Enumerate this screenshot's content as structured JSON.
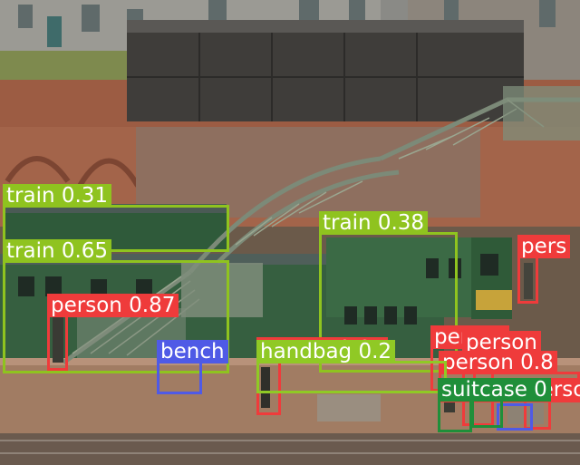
{
  "colors": {
    "train": "#8fc31f",
    "person": "#ef3b3b",
    "bench": "#4f5ae6",
    "handbag": "#90c925",
    "suitcase": "#1f8f3a"
  },
  "detections": [
    {
      "name": "det-train-1",
      "cls": "train",
      "label": "train 0.31"
    },
    {
      "name": "det-train-2",
      "cls": "train",
      "label": "train 0.65"
    },
    {
      "name": "det-train-3",
      "cls": "train",
      "label": "train 0.38"
    },
    {
      "name": "det-person-1",
      "cls": "person",
      "label": "person 0.87"
    },
    {
      "name": "det-person-2",
      "cls": "person",
      "label": "person 0.87"
    },
    {
      "name": "det-person-3",
      "cls": "person",
      "label": "pers"
    },
    {
      "name": "det-person-4",
      "cls": "person",
      "label": "person"
    },
    {
      "name": "det-person-5",
      "cls": "person",
      "label": "person"
    },
    {
      "name": "det-person-6",
      "cls": "person",
      "label": "person 0.8"
    },
    {
      "name": "det-person-7",
      "cls": "person",
      "label": "person"
    },
    {
      "name": "det-bench-1",
      "cls": "bench",
      "label": "bench"
    },
    {
      "name": "det-bench-2",
      "cls": "bench",
      "label": ""
    },
    {
      "name": "det-handbag-1",
      "cls": "handbag",
      "label": "handbag 0.2"
    },
    {
      "name": "det-suitcase-1",
      "cls": "suitcase",
      "label": "suitcase 0"
    },
    {
      "name": "det-suitcase-2",
      "cls": "suitcase",
      "label": ""
    }
  ]
}
